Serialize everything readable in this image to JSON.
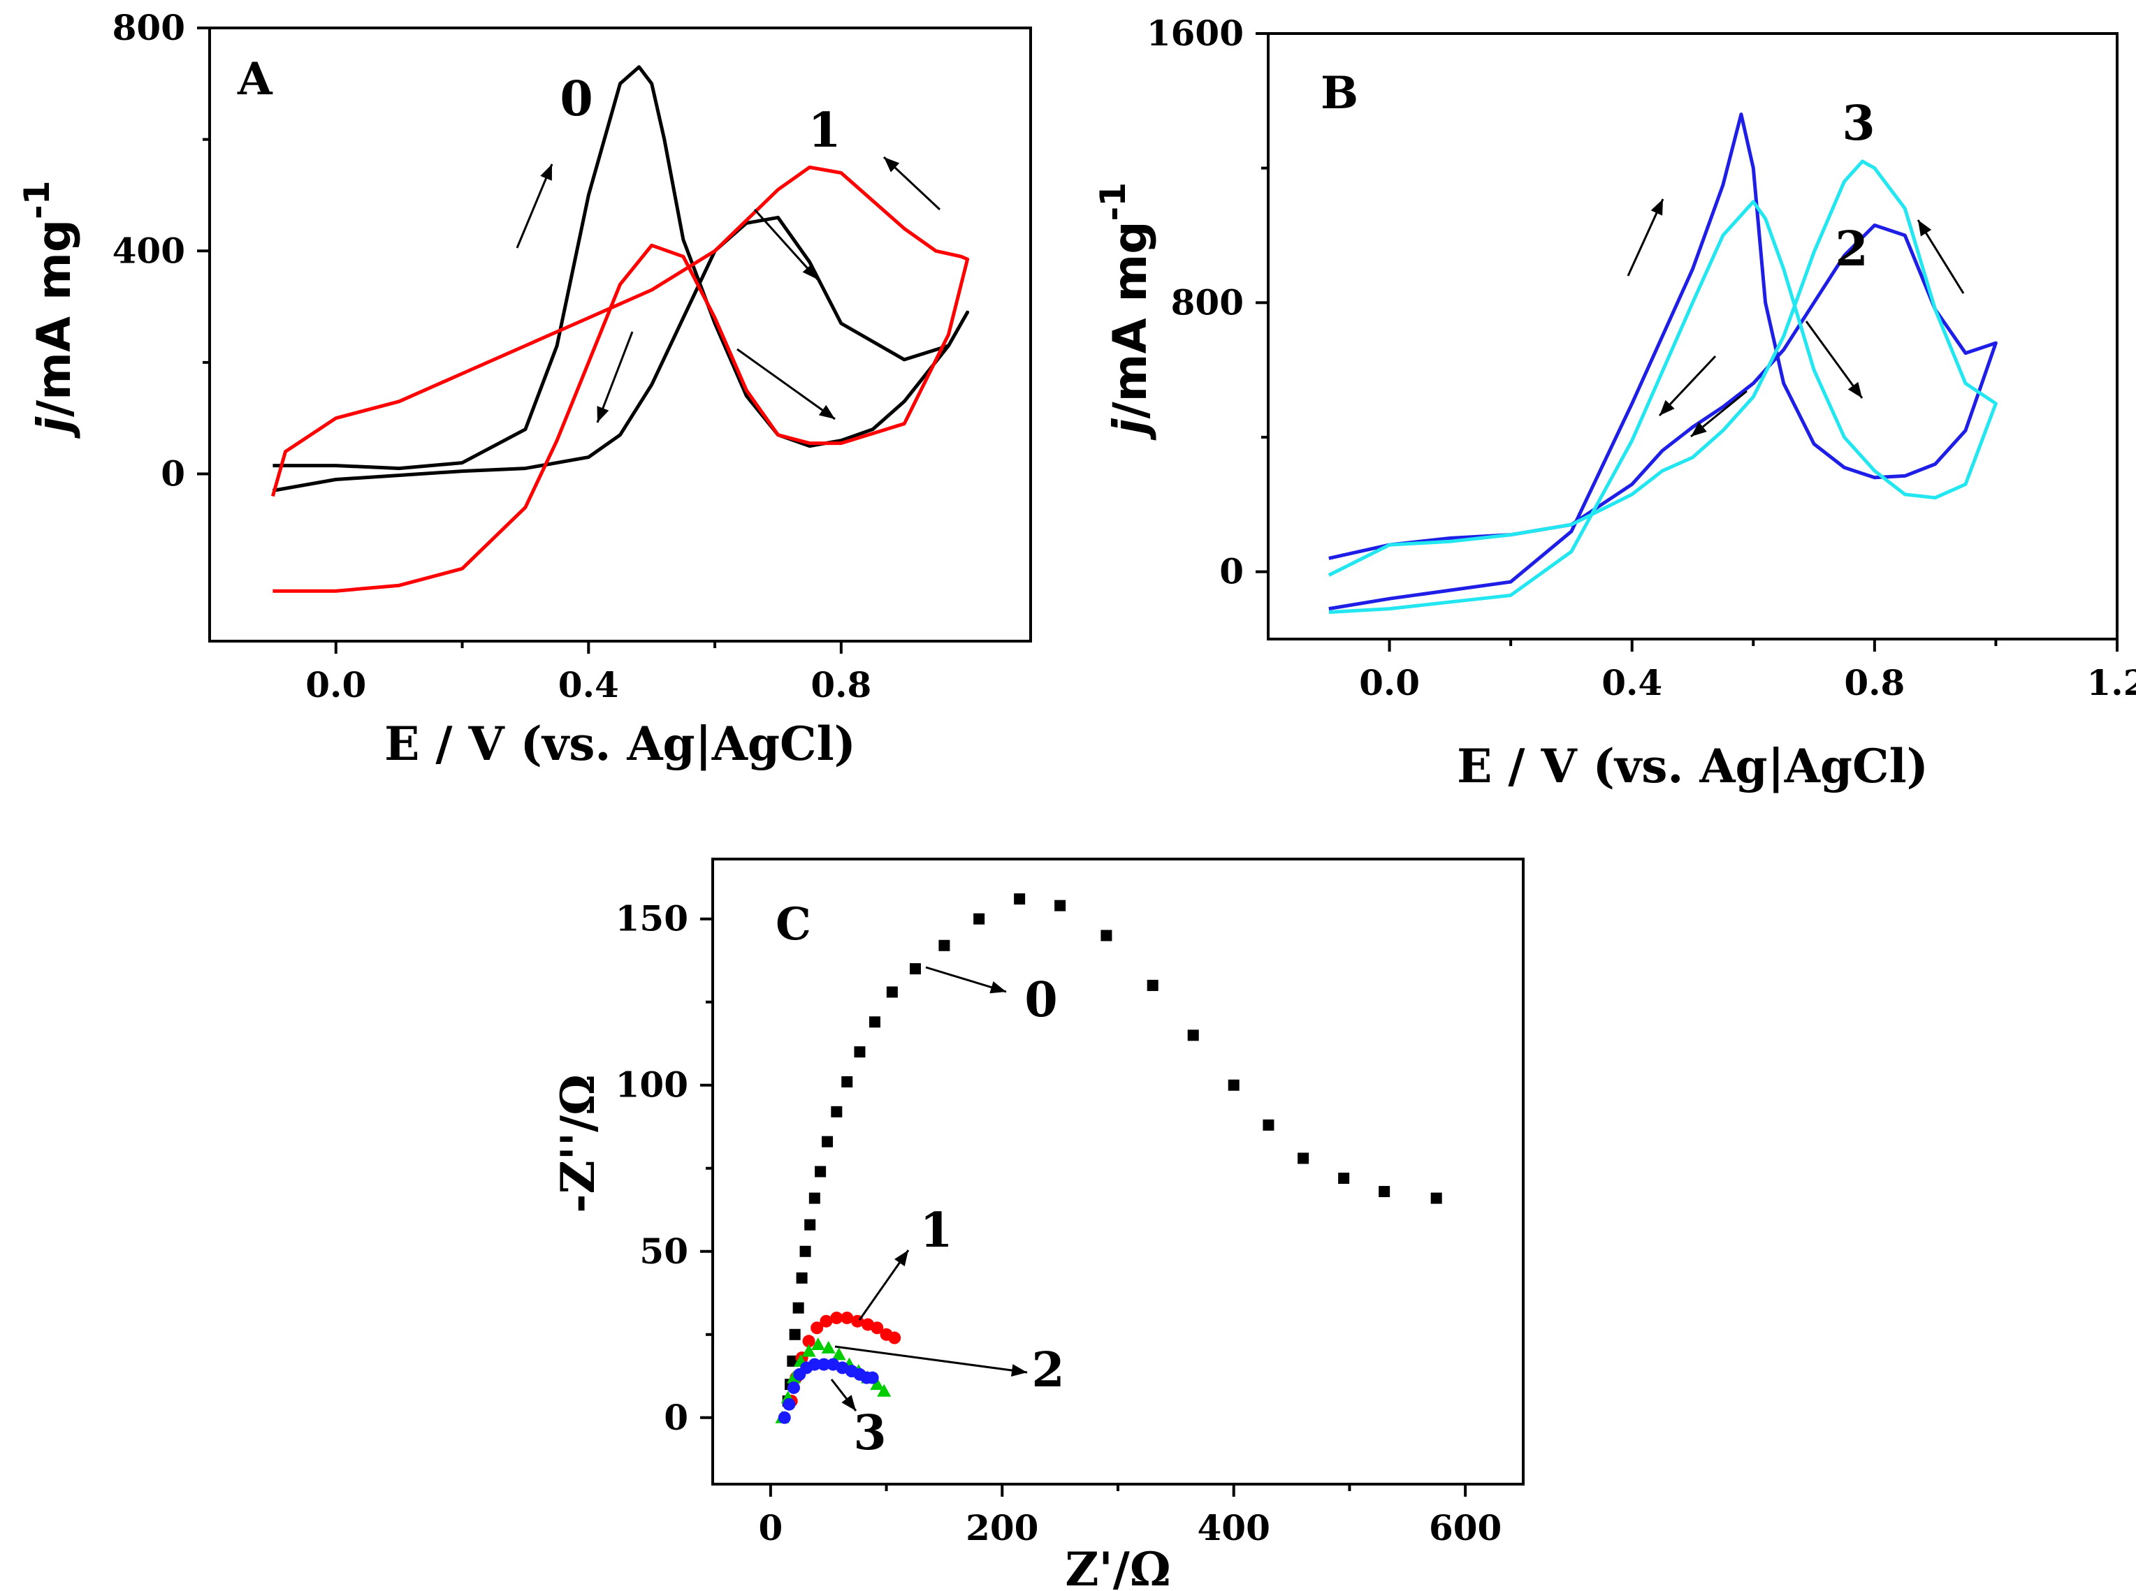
{
  "chart_data": [
    {
      "id": "A",
      "type": "line",
      "panel_label": "A",
      "xlabel": "E / V (vs. Ag|AgCl)",
      "ylabel": "j/mA mg-1",
      "ylabel_parts": {
        "italic": "j",
        "main": "/mA mg",
        "sup": "-1"
      },
      "xlim": [
        -0.2,
        1.1
      ],
      "ylim": [
        -300,
        800
      ],
      "xticks": [
        0.0,
        0.4,
        0.8
      ],
      "xtick_labels": [
        "0.0",
        "0.4",
        "0.8"
      ],
      "yticks": [
        0,
        400,
        800
      ],
      "ytick_labels": [
        "0",
        "400",
        "800"
      ],
      "series": [
        {
          "name": "0",
          "color": "#000000",
          "x": [
            -0.1,
            0.0,
            0.2,
            0.3,
            0.4,
            0.45,
            0.5,
            0.55,
            0.6,
            0.65,
            0.7,
            0.75,
            0.8,
            0.9,
            0.97,
            1.0,
            0.97,
            0.9,
            0.85,
            0.8,
            0.75,
            0.7,
            0.65,
            0.6,
            0.55,
            0.52,
            0.5,
            0.48,
            0.45,
            0.4,
            0.35,
            0.3,
            0.2,
            0.1,
            0.0,
            -0.1
          ],
          "y": [
            -30,
            -10,
            5,
            10,
            30,
            70,
            160,
            280,
            400,
            450,
            460,
            380,
            270,
            205,
            230,
            290,
            230,
            130,
            80,
            60,
            50,
            70,
            140,
            270,
            420,
            600,
            700,
            730,
            700,
            500,
            230,
            80,
            20,
            10,
            15,
            15
          ]
        },
        {
          "name": "1",
          "color": "#ff0000",
          "x": [
            -0.1,
            -0.08,
            0.0,
            0.1,
            0.2,
            0.3,
            0.4,
            0.5,
            0.6,
            0.7,
            0.75,
            0.8,
            0.85,
            0.9,
            0.95,
            0.99,
            1.0,
            0.97,
            0.9,
            0.8,
            0.75,
            0.7,
            0.65,
            0.6,
            0.55,
            0.5,
            0.45,
            0.4,
            0.35,
            0.3,
            0.2,
            0.1,
            0.0,
            -0.1
          ],
          "y": [
            -40,
            40,
            100,
            130,
            180,
            230,
            280,
            330,
            400,
            510,
            550,
            540,
            490,
            440,
            400,
            390,
            385,
            250,
            90,
            55,
            55,
            70,
            150,
            280,
            390,
            410,
            340,
            200,
            60,
            -60,
            -170,
            -200,
            -210,
            -210
          ]
        }
      ],
      "curve_labels": [
        "0",
        "1"
      ]
    },
    {
      "id": "B",
      "type": "line",
      "panel_label": "B",
      "xlabel": "E / V (vs. Ag|AgCl)",
      "ylabel": "j/mA mg-1",
      "ylabel_parts": {
        "italic": "j",
        "main": "/mA mg",
        "sup": "-1"
      },
      "xlim": [
        -0.2,
        1.2
      ],
      "ylim": [
        -200,
        1600
      ],
      "xticks": [
        0.0,
        0.4,
        0.8,
        1.2
      ],
      "xtick_labels": [
        "0.0",
        "0.4",
        "0.8",
        "1.2"
      ],
      "yticks": [
        0,
        800,
        1600
      ],
      "ytick_labels": [
        "0",
        "800",
        "1600"
      ],
      "series": [
        {
          "name": "2",
          "color": "#1e1ee6",
          "x": [
            -0.1,
            0.0,
            0.2,
            0.3,
            0.4,
            0.5,
            0.55,
            0.58,
            0.6,
            0.62,
            0.65,
            0.7,
            0.75,
            0.8,
            0.85,
            0.9,
            0.95,
            1.0,
            0.95,
            0.9,
            0.85,
            0.8,
            0.75,
            0.7,
            0.65,
            0.6,
            0.55,
            0.5,
            0.45,
            0.4,
            0.3,
            0.2,
            0.1,
            0.0,
            -0.1
          ],
          "y": [
            -110,
            -80,
            -30,
            120,
            500,
            900,
            1150,
            1360,
            1200,
            800,
            560,
            380,
            310,
            280,
            285,
            320,
            420,
            680,
            650,
            780,
            1000,
            1030,
            940,
            800,
            660,
            560,
            490,
            430,
            360,
            260,
            140,
            110,
            100,
            80,
            40
          ]
        },
        {
          "name": "3",
          "color": "#22e6f0",
          "x": [
            -0.1,
            0.0,
            0.2,
            0.3,
            0.4,
            0.5,
            0.55,
            0.6,
            0.62,
            0.65,
            0.7,
            0.75,
            0.8,
            0.85,
            0.9,
            0.95,
            1.0,
            0.95,
            0.9,
            0.85,
            0.8,
            0.78,
            0.75,
            0.7,
            0.65,
            0.6,
            0.55,
            0.5,
            0.45,
            0.4,
            0.3,
            0.2,
            0.1,
            0.0,
            -0.1
          ],
          "y": [
            -120,
            -110,
            -70,
            60,
            390,
            800,
            1000,
            1100,
            1050,
            900,
            600,
            400,
            300,
            230,
            220,
            260,
            500,
            560,
            780,
            1080,
            1200,
            1220,
            1160,
            950,
            700,
            520,
            420,
            340,
            300,
            230,
            140,
            110,
            90,
            80,
            -10
          ]
        }
      ],
      "curve_labels": [
        "2",
        "3"
      ]
    },
    {
      "id": "C",
      "type": "scatter",
      "panel_label": "C",
      "xlabel": "Z'/Ω",
      "ylabel": "-Z''/Ω",
      "xlim": [
        -50,
        650
      ],
      "ylim": [
        -20,
        168
      ],
      "xticks": [
        0,
        200,
        400,
        600
      ],
      "xtick_labels": [
        "0",
        "200",
        "400",
        "600"
      ],
      "yticks": [
        0,
        50,
        100,
        150
      ],
      "ytick_labels": [
        "0",
        "50",
        "100",
        "150"
      ],
      "series": [
        {
          "name": "0",
          "color": "#000000",
          "x": [
            15,
            17,
            19,
            21,
            24,
            27,
            30,
            34,
            38,
            43,
            49,
            57,
            66,
            77,
            90,
            105,
            125,
            150,
            180,
            215,
            250,
            290,
            330,
            365,
            400,
            430,
            460,
            495,
            530,
            575
          ],
          "y": [
            5,
            10,
            17,
            25,
            33,
            42,
            50,
            58,
            66,
            74,
            83,
            92,
            101,
            110,
            119,
            128,
            135,
            142,
            150,
            156,
            154,
            145,
            130,
            115,
            100,
            88,
            78,
            72,
            68,
            66
          ]
        },
        {
          "name": "1",
          "color": "#ff0000",
          "x": [
            18,
            22,
            27,
            33,
            40,
            48,
            57,
            66,
            75,
            84,
            92,
            100,
            107
          ],
          "y": [
            5,
            12,
            18,
            23,
            27,
            29,
            30,
            30,
            29,
            28,
            27,
            25,
            24
          ]
        },
        {
          "name": "2",
          "color": "#00cc00",
          "x": [
            10,
            15,
            20,
            26,
            33,
            41,
            50,
            59,
            68,
            76,
            84,
            92,
            98
          ],
          "y": [
            0,
            6,
            12,
            17,
            20,
            22,
            21,
            19,
            16,
            14,
            12,
            10,
            8
          ]
        },
        {
          "name": "3",
          "color": "#1a1aff",
          "x": [
            12,
            16,
            20,
            25,
            31,
            38,
            46,
            54,
            62,
            70,
            77,
            83,
            88
          ],
          "y": [
            0,
            4,
            9,
            13,
            15,
            16,
            16,
            16,
            15,
            14,
            13,
            12,
            12
          ]
        }
      ],
      "curve_labels": [
        "0",
        "1",
        "2",
        "3"
      ]
    }
  ]
}
